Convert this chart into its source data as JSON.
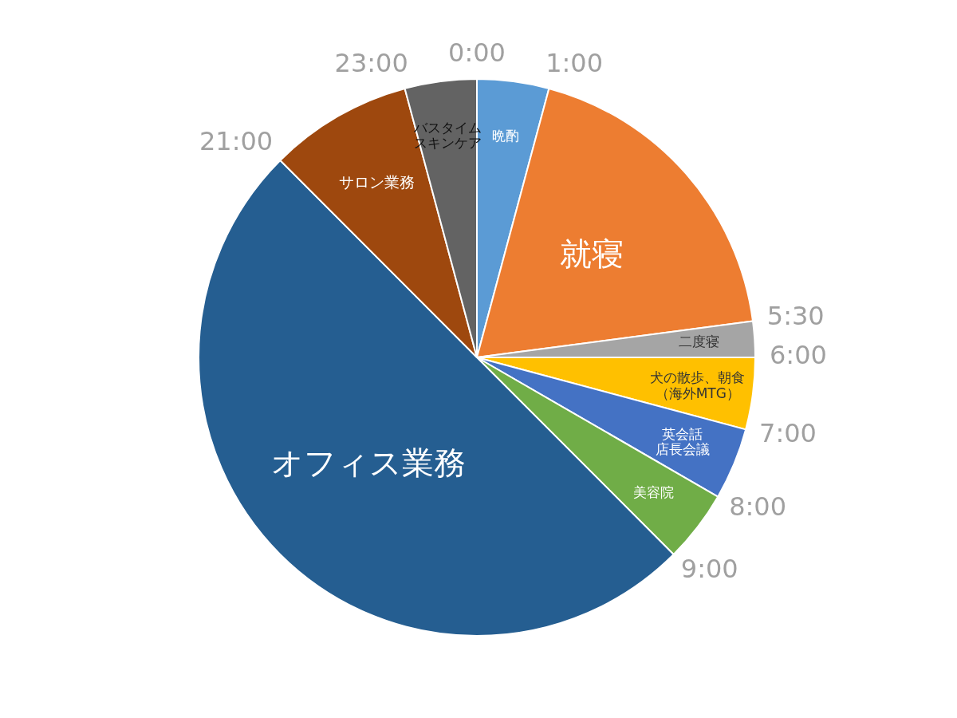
{
  "chart_data": {
    "type": "pie",
    "categories": [
      "晩酌",
      "就寝",
      "二度寝",
      "犬の散歩、朝食（海外MTG）",
      "英会話店長会議",
      "美容院",
      "オフィス業務",
      "サロン業務",
      "バスタイムスキンケア"
    ],
    "values": [
      4.17,
      18.75,
      2.08,
      4.17,
      4.17,
      4.17,
      50,
      8.32,
      4.17
    ],
    "colors": [
      "#5b9bd5",
      "#ed7d31",
      "#a5a5a5",
      "#ffc000",
      "#4472c4",
      "#70ad47",
      "#255e91",
      "#9e480e",
      "#636363"
    ],
    "annotations": [
      "0:00",
      "1:00",
      "5:30",
      "6:00",
      "7:00",
      "8:00",
      "9:00",
      "21:00",
      "23:00"
    ],
    "legend": false
  }
}
